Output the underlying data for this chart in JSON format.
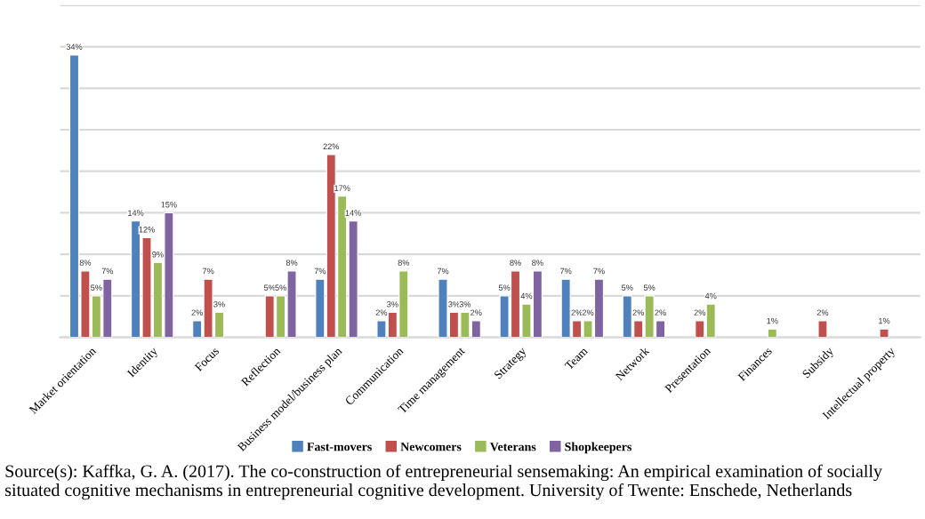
{
  "chart_data": {
    "type": "bar",
    "categories": [
      "Market orientation",
      "Identity",
      "Focus",
      "Reflection",
      "Business model/business plan",
      "Communication",
      "Time management",
      "Strategy",
      "Team",
      "Network",
      "Presentation",
      "Finances",
      "Subsidy",
      "Intellectual property"
    ],
    "series": [
      {
        "name": "Fast-movers",
        "color": "#4f81bd",
        "values": [
          34,
          14,
          2,
          null,
          7,
          2,
          7,
          5,
          7,
          5,
          null,
          null,
          null,
          null
        ],
        "value_labels": [
          "34%",
          "14%",
          "2%",
          null,
          "7%",
          "2%",
          "7%",
          "5%",
          "7%",
          "5%",
          null,
          null,
          null,
          null
        ]
      },
      {
        "name": "Newcomers",
        "color": "#c0504d",
        "values": [
          8,
          12,
          7,
          5,
          22,
          3,
          3,
          8,
          2,
          2,
          2,
          null,
          2,
          1
        ],
        "value_labels": [
          "8%",
          "12%",
          "7%",
          "5%",
          "22%",
          "3%",
          "3%",
          "8%",
          "2%",
          "2%",
          "2%",
          null,
          "2%",
          "1%"
        ]
      },
      {
        "name": "Veterans",
        "color": "#9bbb59",
        "values": [
          5,
          9,
          3,
          5,
          17,
          8,
          3,
          4,
          2,
          5,
          4,
          1,
          null,
          null
        ],
        "value_labels": [
          "5%",
          "9%",
          "3%",
          "5%",
          "17%",
          "8%",
          "3%",
          "4%",
          "2%",
          "5%",
          "4%",
          "1%",
          null,
          null
        ]
      },
      {
        "name": "Shopkeepers",
        "color": "#8064a2",
        "values": [
          7,
          15,
          null,
          8,
          14,
          null,
          2,
          8,
          7,
          2,
          null,
          null,
          null,
          null
        ],
        "value_labels": [
          "7%",
          "15%",
          null,
          "8%",
          "14%",
          null,
          "2%",
          "8%",
          "7%",
          "2%",
          null,
          null,
          null,
          null
        ]
      }
    ],
    "ylim": [
      0,
      40
    ],
    "yticks": [
      {
        "value": 0,
        "label": null
      },
      {
        "value": 5,
        "label": null
      },
      {
        "value": 10,
        "label": null
      },
      {
        "value": 15,
        "label": null
      },
      {
        "value": 20,
        "label": null
      },
      {
        "value": 25,
        "label": null
      },
      {
        "value": 30,
        "label": null
      },
      {
        "value": 35,
        "label": null
      },
      {
        "value": 40,
        "label": null
      }
    ],
    "tick_labels": "x",
    "grid": "y",
    "legend": "bottom",
    "annotations": [
      "Source(s): Kaffka, G. A. (2017). The co-construction of entrepreneurial sensemaking: An empirical examination of socially situated cognitive mechanisms in entrepreneurial cognitive development. University of Twente: Enschede, Netherlands"
    ]
  }
}
